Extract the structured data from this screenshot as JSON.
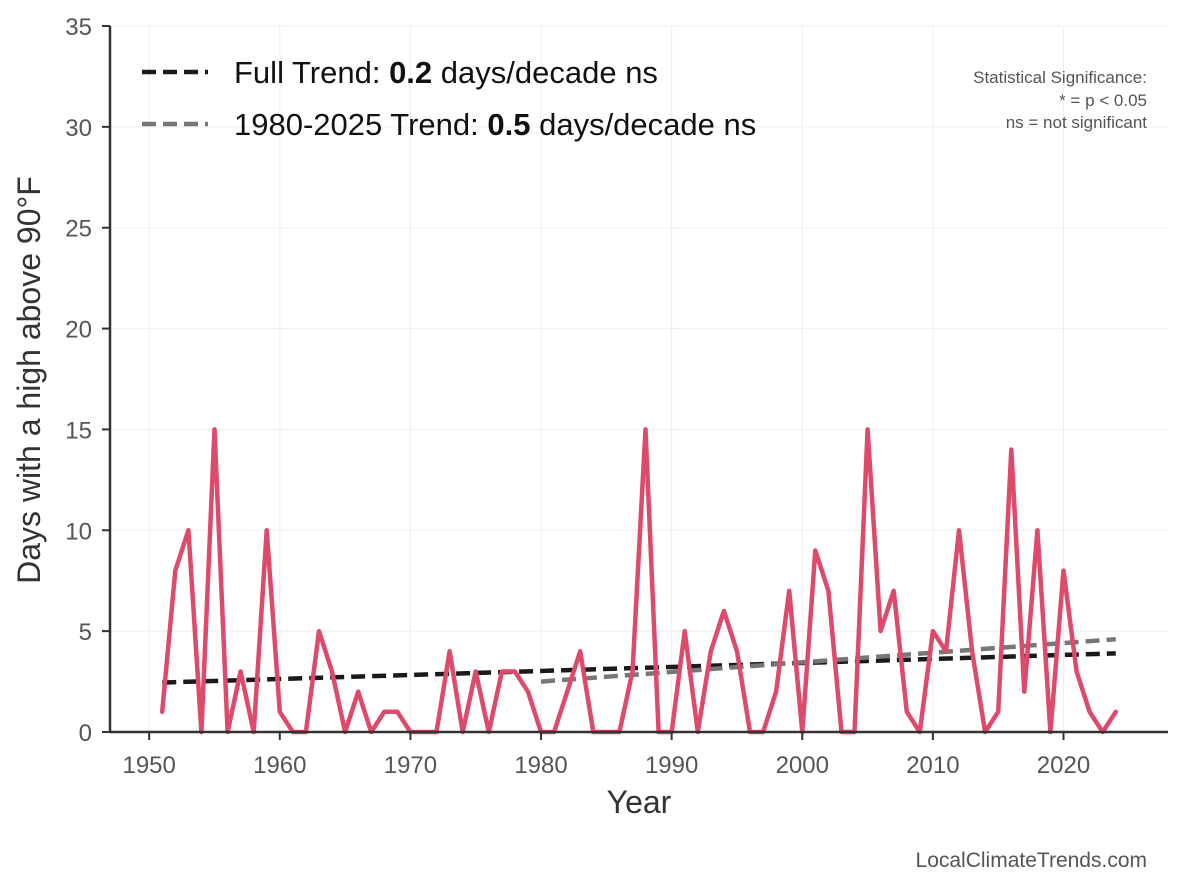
{
  "chart_data": {
    "type": "line",
    "title": "",
    "xlabel": "Year",
    "ylabel": "Days with a high above 90°F",
    "xlim": [
      1947,
      2028
    ],
    "ylim": [
      0,
      35
    ],
    "x_ticks": [
      1950,
      1960,
      1970,
      1980,
      1990,
      2000,
      2010,
      2020
    ],
    "y_ticks": [
      0,
      5,
      10,
      15,
      20,
      25,
      30,
      35
    ],
    "grid": true,
    "legend_position": "top-left",
    "series": [
      {
        "color": "#de4a6a",
        "x": [
          1951,
          1952,
          1953,
          1954,
          1955,
          1956,
          1957,
          1958,
          1959,
          1960,
          1961,
          1962,
          1963,
          1964,
          1965,
          1966,
          1967,
          1968,
          1969,
          1970,
          1971,
          1972,
          1973,
          1974,
          1975,
          1976,
          1977,
          1978,
          1979,
          1980,
          1981,
          1982,
          1983,
          1984,
          1985,
          1986,
          1987,
          1988,
          1989,
          1990,
          1991,
          1992,
          1993,
          1994,
          1995,
          1996,
          1997,
          1998,
          1999,
          2000,
          2001,
          2002,
          2003,
          2004,
          2005,
          2006,
          2007,
          2008,
          2009,
          2010,
          2011,
          2012,
          2013,
          2014,
          2015,
          2016,
          2017,
          2018,
          2019,
          2020,
          2021,
          2022,
          2023,
          2024
        ],
        "values": [
          1,
          8,
          10,
          0,
          15,
          0,
          3,
          0,
          10,
          1,
          0,
          0,
          5,
          3,
          0,
          2,
          0,
          1,
          1,
          0,
          0,
          0,
          4,
          0,
          3,
          0,
          3,
          3,
          2,
          0,
          0,
          2,
          4,
          0,
          0,
          0,
          3,
          15,
          0,
          0,
          5,
          0,
          4,
          6,
          4,
          0,
          0,
          2,
          7,
          0,
          9,
          7,
          0,
          0,
          15,
          5,
          7,
          1,
          0,
          5,
          4,
          10,
          4,
          0,
          1,
          14,
          2,
          10,
          0,
          8,
          3,
          1,
          0,
          1
        ]
      }
    ],
    "trend_lines": [
      {
        "name": "Full Trend",
        "x": [
          1951,
          2024
        ],
        "values": [
          2.45,
          3.9
        ],
        "color": "#1a1a1a"
      },
      {
        "name": "1980-2025 Trend",
        "x": [
          1980,
          2024
        ],
        "values": [
          2.5,
          4.6
        ],
        "color": "#777777"
      }
    ],
    "legend": [
      {
        "prefix": "Full Trend: ",
        "value": "0.2",
        "suffix": " days/decade ns",
        "color": "#1a1a1a"
      },
      {
        "prefix": "1980-2025 Trend: ",
        "value": "0.5",
        "suffix": " days/decade ns",
        "color": "#777777"
      }
    ],
    "annotations": {
      "significance_title": "Statistical Significance:",
      "significance_line1": "* = p < 0.05",
      "significance_line2": "ns = not significant",
      "source": "LocalClimateTrends.com"
    }
  }
}
